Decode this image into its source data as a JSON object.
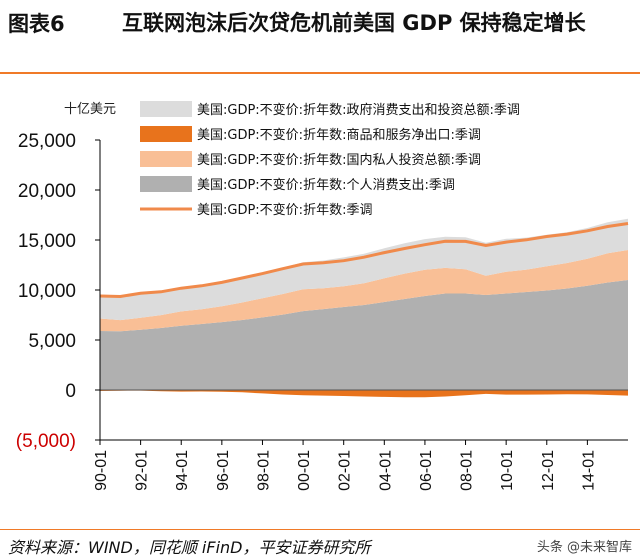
{
  "header": {
    "figure_label": "图表6",
    "title": "互联网泡沫后次贷危机前美国 GDP 保持稳定增长"
  },
  "footer": {
    "source": "资料来源：WIND，同花顺 iFinD，平安证券研究所",
    "watermark": "头条 @未来智库"
  },
  "colors": {
    "government": "#dcdcdc",
    "net_exports": "#e8731c",
    "investment": "#f9bf96",
    "consumption": "#b0b0b0",
    "gdp_line": "#f08a4b",
    "accent": "#f07a28",
    "negative_tick": "#cc0000"
  },
  "chart_data": {
    "type": "area",
    "unit_label": "十亿美元",
    "ylim": [
      -5000,
      25000
    ],
    "y_ticks": [
      {
        "value": 25000,
        "label": "25,000"
      },
      {
        "value": 20000,
        "label": "20,000"
      },
      {
        "value": 15000,
        "label": "15,000"
      },
      {
        "value": 10000,
        "label": "10,000"
      },
      {
        "value": 5000,
        "label": "5,000"
      },
      {
        "value": 0,
        "label": "0"
      },
      {
        "value": -5000,
        "label": "(5,000)"
      }
    ],
    "x_ticks": [
      "90-01",
      "92-01",
      "94-01",
      "96-01",
      "98-01",
      "00-01",
      "02-01",
      "04-01",
      "06-01",
      "08-01",
      "10-01",
      "12-01",
      "14-01"
    ],
    "legend_position": "top",
    "x": [
      1990,
      1991,
      1992,
      1993,
      1994,
      1995,
      1996,
      1997,
      1998,
      1999,
      2000,
      2001,
      2002,
      2003,
      2004,
      2005,
      2006,
      2007,
      2008,
      2009,
      2010,
      2011,
      2012,
      2013,
      2014,
      2015,
      2016
    ],
    "series": [
      {
        "key": "government",
        "name": "美国:GDP:不变价:折年数:政府消费支出和投资总额:季调",
        "kind": "area",
        "values": [
          2400,
          2450,
          2450,
          2430,
          2440,
          2450,
          2470,
          2520,
          2560,
          2620,
          2700,
          2780,
          2880,
          2950,
          3000,
          3030,
          3070,
          3120,
          3200,
          3300,
          3300,
          3200,
          3150,
          3080,
          3070,
          3100,
          3120
        ]
      },
      {
        "key": "net_exports",
        "name": "美国:GDP:不变价:折年数:商品和服务净出口:季调",
        "kind": "area",
        "values": [
          -100,
          -70,
          -60,
          -120,
          -160,
          -150,
          -170,
          -230,
          -340,
          -450,
          -520,
          -560,
          -600,
          -650,
          -690,
          -720,
          -720,
          -650,
          -520,
          -390,
          -460,
          -460,
          -450,
          -420,
          -440,
          -500,
          -560
        ]
      },
      {
        "key": "investment",
        "name": "美国:GDP:不变价:折年数:国内私人投资总额:季调",
        "kind": "area",
        "values": [
          1250,
          1120,
          1190,
          1290,
          1440,
          1480,
          1580,
          1750,
          1920,
          2060,
          2180,
          2080,
          2080,
          2170,
          2370,
          2540,
          2620,
          2560,
          2420,
          1920,
          2170,
          2240,
          2420,
          2550,
          2710,
          2920,
          3000
        ]
      },
      {
        "key": "consumption",
        "name": "美国:GDP:不变价:折年数:个人消费支出:季调",
        "kind": "area",
        "values": [
          5900,
          5870,
          6030,
          6200,
          6420,
          6600,
          6790,
          7000,
          7260,
          7540,
          7890,
          8090,
          8300,
          8500,
          8800,
          9100,
          9400,
          9650,
          9650,
          9500,
          9650,
          9800,
          9950,
          10150,
          10420,
          10750,
          11000
        ]
      },
      {
        "key": "gdp_line",
        "name": "美国:GDP:不变价:折年数:季调",
        "kind": "line",
        "values": [
          9400,
          9350,
          9670,
          9820,
          10180,
          10420,
          10760,
          11200,
          11640,
          12130,
          12600,
          12720,
          12930,
          13280,
          13740,
          14150,
          14530,
          14870,
          14860,
          14450,
          14790,
          15020,
          15350,
          15590,
          15920,
          16350,
          16650
        ]
      }
    ]
  }
}
